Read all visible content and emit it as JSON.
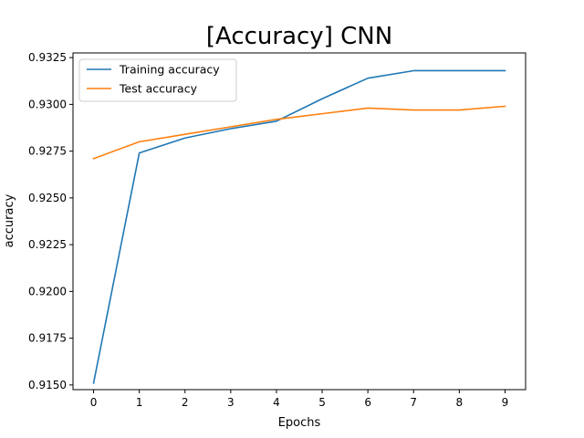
{
  "chart_data": {
    "type": "line",
    "title": "[Accuracy] CNN",
    "xlabel": "Epochs",
    "ylabel": "accuracy",
    "x": [
      0,
      1,
      2,
      3,
      4,
      5,
      6,
      7,
      8,
      9
    ],
    "xlim": [
      -0.45,
      9.45
    ],
    "ylim": [
      0.91475,
      0.93275
    ],
    "xticks": [
      0,
      1,
      2,
      3,
      4,
      5,
      6,
      7,
      8,
      9
    ],
    "yticks": [
      0.915,
      0.9175,
      0.92,
      0.9225,
      0.925,
      0.9275,
      0.93,
      0.9325
    ],
    "ytick_labels": [
      "0.9150",
      "0.9175",
      "0.9200",
      "0.9225",
      "0.9250",
      "0.9275",
      "0.9300",
      "0.9325"
    ],
    "grid": false,
    "legend_position": "top-left",
    "series": [
      {
        "name": "Training accuracy",
        "color": "#1f77b4",
        "values": [
          0.9151,
          0.9274,
          0.9282,
          0.9287,
          0.9291,
          0.9303,
          0.9314,
          0.9318,
          0.9318,
          0.9318
        ]
      },
      {
        "name": "Test accuracy",
        "color": "#ff7f0e",
        "values": [
          0.9271,
          0.928,
          0.9284,
          0.9288,
          0.9292,
          0.9295,
          0.9298,
          0.9297,
          0.9297,
          0.9299
        ]
      }
    ]
  }
}
